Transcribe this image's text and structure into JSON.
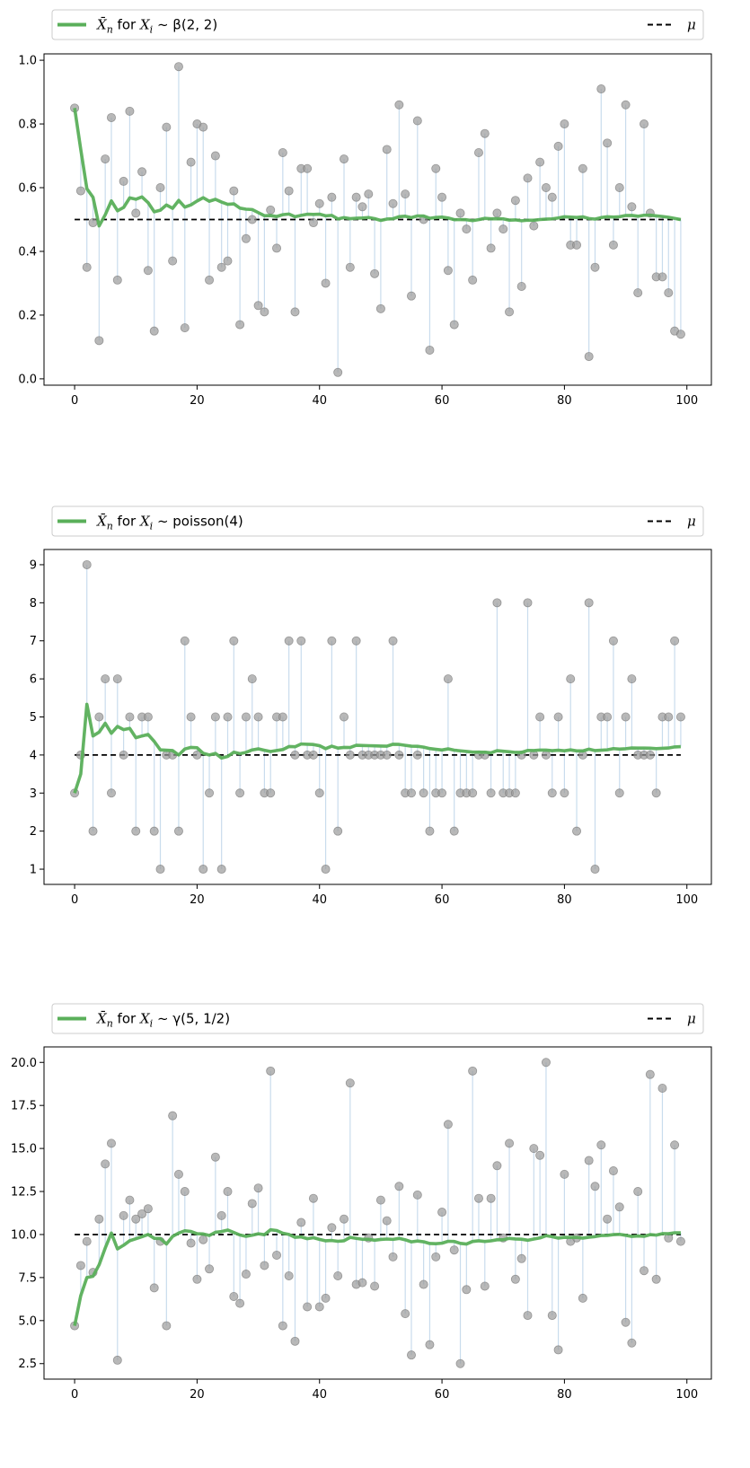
{
  "colors": {
    "mean_line": "#5aaf5a",
    "mu_line": "#000000",
    "sample_point": "#9a9a9a",
    "stem": "#c9dced",
    "legend_border": "#cccccc"
  },
  "chart_data": [
    {
      "type": "line",
      "legend": {
        "mean_prefix": "for",
        "mean_dist_label": "β(2, 2)",
        "mu_label": "μ",
        "placement": "above-plot"
      },
      "xlim": [
        -5,
        104
      ],
      "ylim": [
        -0.02,
        1.02
      ],
      "xticks": [
        0,
        20,
        40,
        60,
        80,
        100
      ],
      "yticks": [
        0.0,
        0.2,
        0.4,
        0.6,
        0.8,
        1.0
      ],
      "ytick_labels": [
        "0.0",
        "0.2",
        "0.4",
        "0.6",
        "0.8",
        "1.0"
      ],
      "mu": 0.5,
      "samples": [
        0.85,
        0.59,
        0.35,
        0.49,
        0.12,
        0.69,
        0.82,
        0.31,
        0.62,
        0.84,
        0.52,
        0.65,
        0.34,
        0.15,
        0.6,
        0.79,
        0.37,
        0.98,
        0.16,
        0.68,
        0.8,
        0.79,
        0.31,
        0.7,
        0.35,
        0.37,
        0.59,
        0.17,
        0.44,
        0.5,
        0.23,
        0.21,
        0.53,
        0.41,
        0.71,
        0.59,
        0.21,
        0.66,
        0.66,
        0.49,
        0.55,
        0.3,
        0.57,
        0.02,
        0.69,
        0.35,
        0.57,
        0.54,
        0.58,
        0.33,
        0.22,
        0.72,
        0.55,
        0.86,
        0.58,
        0.26,
        0.81,
        0.5,
        0.09,
        0.66,
        0.57,
        0.34,
        0.17,
        0.52,
        0.47,
        0.31,
        0.71,
        0.77,
        0.41,
        0.52,
        0.47,
        0.21,
        0.56,
        0.29,
        0.63,
        0.48,
        0.68,
        0.6,
        0.57,
        0.73,
        0.8,
        0.42,
        0.42,
        0.66,
        0.07,
        0.35,
        0.91,
        0.74,
        0.42,
        0.6,
        0.86,
        0.54,
        0.27,
        0.8,
        0.52,
        0.32,
        0.32,
        0.27,
        0.15,
        0.14
      ]
    },
    {
      "type": "line",
      "legend": {
        "mean_prefix": "for",
        "mean_dist_label": "poisson(4)",
        "mu_label": "μ",
        "placement": "above-plot"
      },
      "xlim": [
        -5,
        104
      ],
      "ylim": [
        0.6,
        9.4
      ],
      "xticks": [
        0,
        20,
        40,
        60,
        80,
        100
      ],
      "yticks": [
        1,
        2,
        3,
        4,
        5,
        6,
        7,
        8,
        9
      ],
      "ytick_labels": [
        "1",
        "2",
        "3",
        "4",
        "5",
        "6",
        "7",
        "8",
        "9"
      ],
      "mu": 4,
      "samples": [
        3,
        4,
        9,
        2,
        5,
        6,
        3,
        6,
        4,
        5,
        2,
        5,
        5,
        2,
        1,
        4,
        4,
        2,
        7,
        5,
        4,
        1,
        3,
        5,
        1,
        5,
        7,
        3,
        5,
        6,
        5,
        3,
        3,
        5,
        5,
        7,
        4,
        7,
        4,
        4,
        3,
        1,
        7,
        2,
        5,
        4,
        7,
        4,
        4,
        4,
        4,
        4,
        7,
        4,
        3,
        3,
        4,
        3,
        2,
        3,
        3,
        6,
        2,
        3,
        3,
        3,
        4,
        4,
        3,
        8,
        3,
        3,
        3,
        4,
        8,
        4,
        5,
        4,
        3,
        5,
        3,
        6,
        2,
        4,
        8,
        1,
        5,
        5,
        7,
        3,
        5,
        6,
        4,
        4,
        4,
        3,
        5,
        5,
        7,
        5
      ]
    },
    {
      "type": "line",
      "legend": {
        "mean_prefix": "for",
        "mean_dist_label": "γ(5, 1/2)",
        "mu_label": "μ",
        "placement": "above-plot"
      },
      "xlim": [
        -5,
        104
      ],
      "ylim": [
        1.6,
        20.9
      ],
      "xticks": [
        0,
        20,
        40,
        60,
        80,
        100
      ],
      "yticks": [
        2.5,
        5.0,
        7.5,
        10.0,
        12.5,
        15.0,
        17.5,
        20.0
      ],
      "ytick_labels": [
        "2.5",
        "5.0",
        "7.5",
        "10.0",
        "12.5",
        "15.0",
        "17.5",
        "20.0"
      ],
      "mu": 10,
      "samples": [
        4.7,
        8.2,
        9.6,
        7.8,
        10.9,
        14.1,
        15.3,
        2.7,
        11.1,
        12.0,
        10.9,
        11.2,
        11.5,
        6.9,
        9.6,
        4.7,
        16.9,
        13.5,
        12.5,
        9.5,
        7.4,
        9.7,
        8.0,
        14.5,
        11.1,
        12.5,
        6.4,
        6.0,
        7.7,
        11.8,
        12.7,
        8.2,
        19.5,
        8.8,
        4.7,
        7.6,
        3.8,
        10.7,
        5.8,
        12.1,
        5.8,
        6.3,
        10.4,
        7.6,
        10.9,
        18.8,
        7.1,
        7.2,
        9.8,
        7.0,
        12.0,
        10.8,
        8.7,
        12.8,
        5.4,
        3.0,
        12.3,
        7.1,
        3.6,
        8.7,
        11.3,
        16.4,
        9.1,
        2.5,
        6.8,
        19.5,
        12.1,
        7.0,
        12.1,
        14.0,
        9.8,
        15.3,
        7.4,
        8.6,
        5.3,
        15.0,
        14.6,
        20.0,
        5.3,
        3.3,
        13.5,
        9.6,
        9.8,
        6.3,
        14.3,
        12.8,
        15.2,
        10.9,
        13.7,
        11.6,
        4.9,
        3.7,
        12.5,
        7.9,
        19.3,
        7.4,
        18.5,
        9.8,
        15.2,
        9.6
      ]
    }
  ]
}
